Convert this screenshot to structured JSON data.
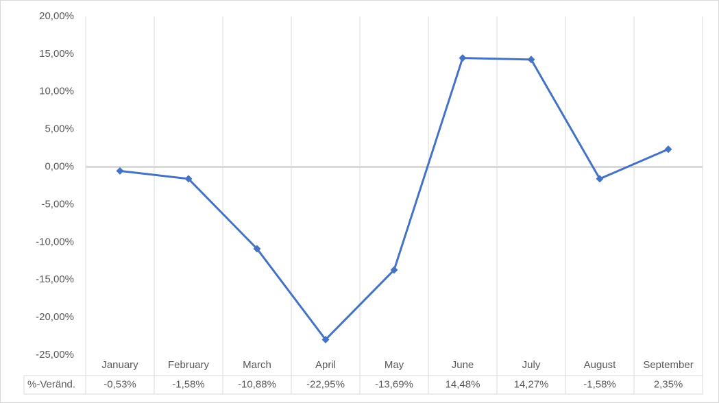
{
  "chart_data": {
    "type": "line",
    "categories": [
      "January",
      "February",
      "March",
      "April",
      "May",
      "June",
      "July",
      "August",
      "September"
    ],
    "series": [
      {
        "name": "%-Veränd.",
        "color": "#4472c4",
        "values": [
          -0.53,
          -1.58,
          -10.88,
          -22.95,
          -13.69,
          14.48,
          14.27,
          -1.58,
          2.35
        ],
        "value_labels": [
          "-0,53%",
          "-1,58%",
          "-10,88%",
          "-22,95%",
          "-13,69%",
          "14,48%",
          "14,27%",
          "-1,58%",
          "2,35%"
        ]
      }
    ],
    "ylim": [
      -25,
      20
    ],
    "yticks": [
      {
        "value": -25,
        "label": "-25,00%"
      },
      {
        "value": -20,
        "label": "-20,00%"
      },
      {
        "value": -15,
        "label": "-15,00%"
      },
      {
        "value": -10,
        "label": "-10,00%"
      },
      {
        "value": -5,
        "label": "-5,00%"
      },
      {
        "value": 0,
        "label": "0,00%"
      },
      {
        "value": 5,
        "label": "5,00%"
      },
      {
        "value": 10,
        "label": "10,00%"
      },
      {
        "value": 15,
        "label": "15,00%"
      },
      {
        "value": 20,
        "label": "20,00%"
      }
    ]
  }
}
